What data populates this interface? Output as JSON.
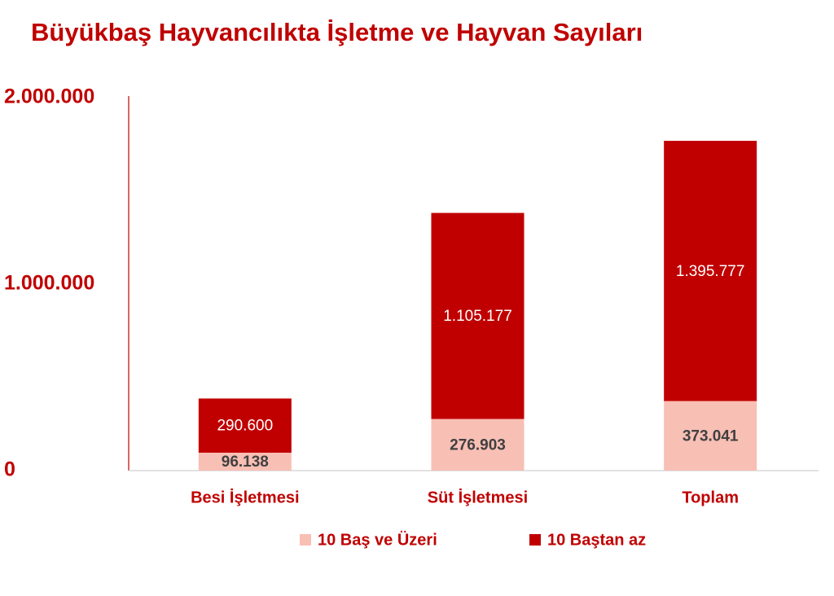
{
  "chart_data": {
    "type": "stacked_bar",
    "title": "Büyükbaş Hayvancılıkta İşletme ve Hayvan Sayıları",
    "categories": [
      "Besi İşletmesi",
      "Süt İşletmesi",
      "Toplam"
    ],
    "series": [
      {
        "name": "10 Baş ve Üzeri",
        "color": "#f8bfb5",
        "label_color": "#404040",
        "values": [
          96138,
          276903,
          373041
        ],
        "value_labels": [
          "96.138",
          "276.903",
          "373.041"
        ]
      },
      {
        "name": "10 Baştan az",
        "color": "#c00000",
        "label_color": "#ffffff",
        "values": [
          290600,
          1105177,
          1395777
        ],
        "value_labels": [
          "290.600",
          "1.105.177",
          "1.395.777"
        ]
      }
    ],
    "ylim": [
      0,
      2000000
    ],
    "yticks": [
      0,
      {
        "value": 1000000,
        "label": "1.000.000"
      },
      {
        "value": 2000000,
        "label": "2.000.000"
      }
    ],
    "grid": false,
    "legend": "bottom"
  }
}
